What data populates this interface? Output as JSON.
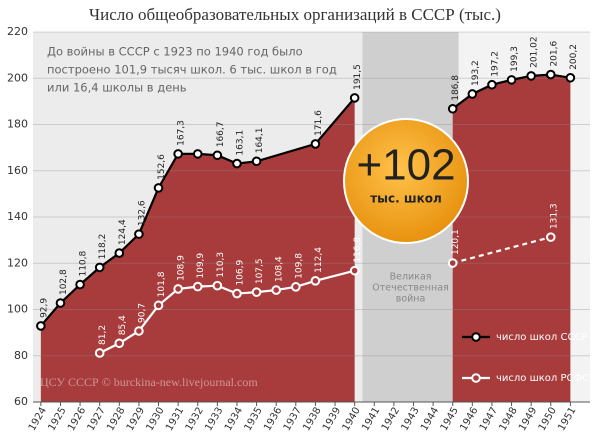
{
  "chart_data": {
    "type": "line",
    "title": "Число общеобразовательных организаций в СССР (тыс.)",
    "xlim": [
      1923.6,
      1952
    ],
    "ylim": [
      60,
      220
    ],
    "xticks": [
      1924,
      1925,
      1926,
      1927,
      1928,
      1929,
      1930,
      1931,
      1932,
      1933,
      1934,
      1935,
      1936,
      1937,
      1938,
      1939,
      1940,
      1941,
      1942,
      1943,
      1944,
      1945,
      1946,
      1947,
      1948,
      1949,
      1950,
      1951
    ],
    "yticks": [
      60,
      80,
      100,
      120,
      140,
      160,
      180,
      200,
      220
    ],
    "grid": true,
    "shaded_x_range": [
      1940.4,
      1945.3
    ],
    "area_color": "#a83b3b",
    "legend_position": "lower right",
    "series": [
      {
        "name": "число школ СССР",
        "color": "#000000",
        "fill_area": true,
        "dash_last_piece": false,
        "x": [
          1924,
          1925,
          1926,
          1927,
          1928,
          1929,
          1930,
          1931,
          1932,
          1933,
          1934,
          1935,
          1938,
          1940,
          null,
          1945,
          1946,
          1947,
          1948,
          1949,
          1950,
          1951
        ],
        "values": [
          92.9,
          102.8,
          110.8,
          118.2,
          124.4,
          132.6,
          152.6,
          167.3,
          167.3,
          166.7,
          163.1,
          164.1,
          171.6,
          191.5,
          null,
          186.8,
          193.2,
          197.2,
          199.3,
          201.02,
          201.6,
          200.2
        ],
        "value_labels": [
          "92,9",
          "102,8",
          "110,8",
          "118,2",
          "124,4",
          "132,6",
          "152,6",
          "167,3",
          null,
          "166,7",
          "163,1",
          "164,1",
          "171,6",
          "191,5",
          null,
          "186,8",
          "193,2",
          "197,2",
          "199,3",
          "201,02",
          "201,6",
          "200,2"
        ]
      },
      {
        "name": "число школ РСФСР",
        "color": "#ffffff",
        "fill_area": false,
        "dash_last_piece": true,
        "x": [
          1927,
          1928,
          1929,
          1930,
          1931,
          1932,
          1933,
          1934,
          1935,
          1936,
          1937,
          1938,
          1940,
          null,
          1945,
          1950
        ],
        "values": [
          81.2,
          85.4,
          90.7,
          101.8,
          108.9,
          109.9,
          110.3,
          106.9,
          107.5,
          108.4,
          109.8,
          112.4,
          116.8,
          null,
          120.1,
          131.3
        ],
        "value_labels": [
          "81,2",
          "85,4",
          "90,7",
          "101,8",
          "108,9",
          "109,9",
          "110,3",
          "106,9",
          "107,5",
          "108,4",
          "109,8",
          "112,4",
          "116,8",
          null,
          "120,1",
          "131,3"
        ]
      }
    ],
    "annotation_lines": [
      "До войны в СССР с 1923 по 1940 год было",
      "построено 101,9 тысяч школ. 6 тыс. школ в год",
      "или 16,4 школы в день"
    ],
    "badge": {
      "value": "+102",
      "unit": "тыс. школ"
    },
    "shaded_label_lines": [
      "Великая",
      "Отечественная",
      "война"
    ],
    "source": "ЦСУ СССР © burckina-new.livejournal.com"
  }
}
